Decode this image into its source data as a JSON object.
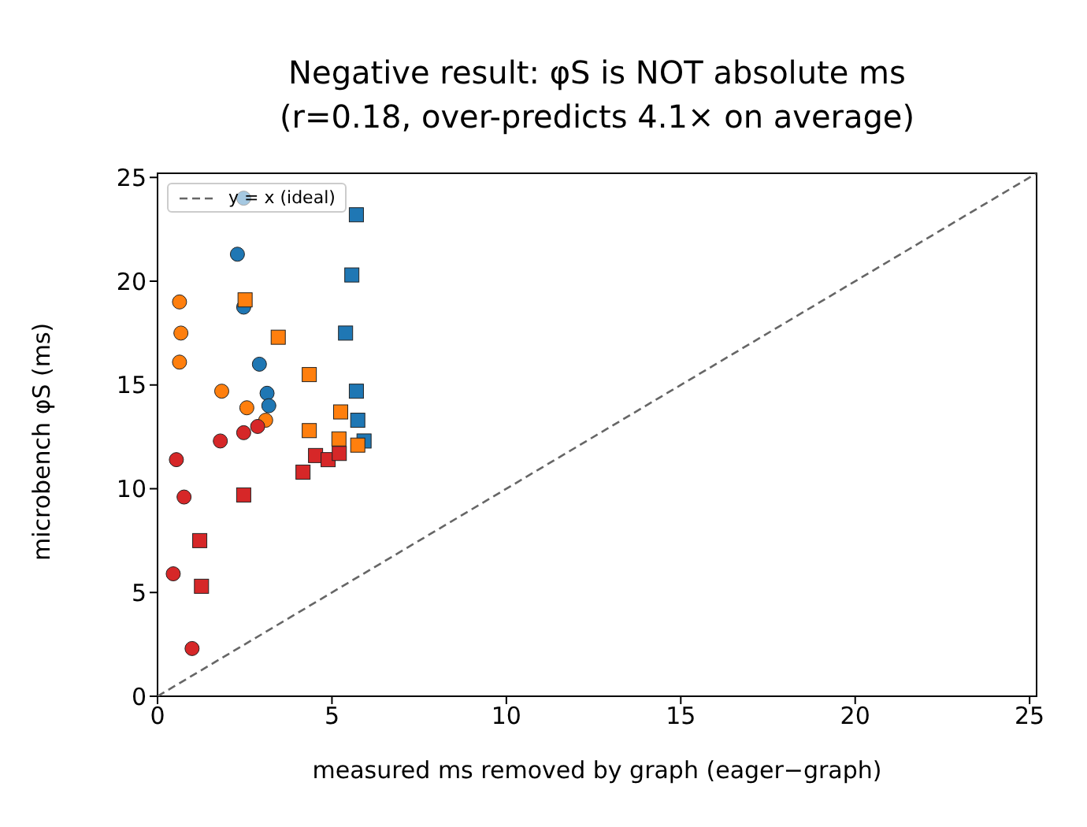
{
  "chart_data": {
    "type": "scatter",
    "title": "Negative result: φS is NOT absolute ms\n(r=0.18, over-predicts 4.1× on average)",
    "xlabel": "measured ms removed by graph (eager−graph)",
    "ylabel": "microbench φS (ms)",
    "xlim": [
      0,
      25.2
    ],
    "ylim": [
      0,
      25.2
    ],
    "xticks": [
      0,
      5,
      10,
      15,
      20,
      25
    ],
    "yticks": [
      0,
      5,
      10,
      15,
      20,
      25
    ],
    "grid": false,
    "legend": "top left",
    "series": [
      {
        "type": "line",
        "name": "y = x (ideal)",
        "color": "#666666",
        "line_style": "dashed",
        "marker": "none",
        "x": [
          0,
          25.2
        ],
        "values": [
          0,
          25.2
        ]
      },
      {
        "color": "#1f77b4",
        "marker": "circle",
        "x": [
          2.47,
          2.29,
          2.47,
          2.92,
          3.14,
          3.19
        ],
        "values": [
          24.0,
          21.3,
          18.75,
          16.0,
          14.6,
          14.0
        ]
      },
      {
        "color": "#1f77b4",
        "marker": "square",
        "x": [
          5.7,
          5.57,
          5.39,
          5.7,
          5.74,
          5.92
        ],
        "values": [
          23.2,
          20.3,
          17.5,
          14.7,
          13.3,
          12.3
        ]
      },
      {
        "color": "#ff7f0e",
        "marker": "circle",
        "x": [
          0.63,
          0.67,
          0.63,
          1.84,
          2.56,
          3.1
        ],
        "values": [
          19.0,
          17.5,
          16.1,
          14.7,
          13.9,
          13.3
        ]
      },
      {
        "color": "#ff7f0e",
        "marker": "square",
        "x": [
          2.51,
          3.46,
          4.35,
          5.25,
          4.35,
          5.2,
          5.74
        ],
        "values": [
          19.1,
          17.3,
          15.5,
          13.7,
          12.8,
          12.4,
          12.1
        ]
      },
      {
        "color": "#d62728",
        "marker": "circle",
        "x": [
          1.8,
          2.47,
          2.87,
          0.54,
          0.76,
          0.45,
          0.99
        ],
        "values": [
          12.3,
          12.7,
          13.0,
          11.4,
          9.6,
          5.9,
          2.3
        ]
      },
      {
        "color": "#d62728",
        "marker": "square",
        "x": [
          4.53,
          4.89,
          4.17,
          5.21,
          2.47,
          1.21,
          1.26
        ],
        "values": [
          11.6,
          11.4,
          10.8,
          11.7,
          9.7,
          7.5,
          5.3
        ]
      }
    ]
  }
}
